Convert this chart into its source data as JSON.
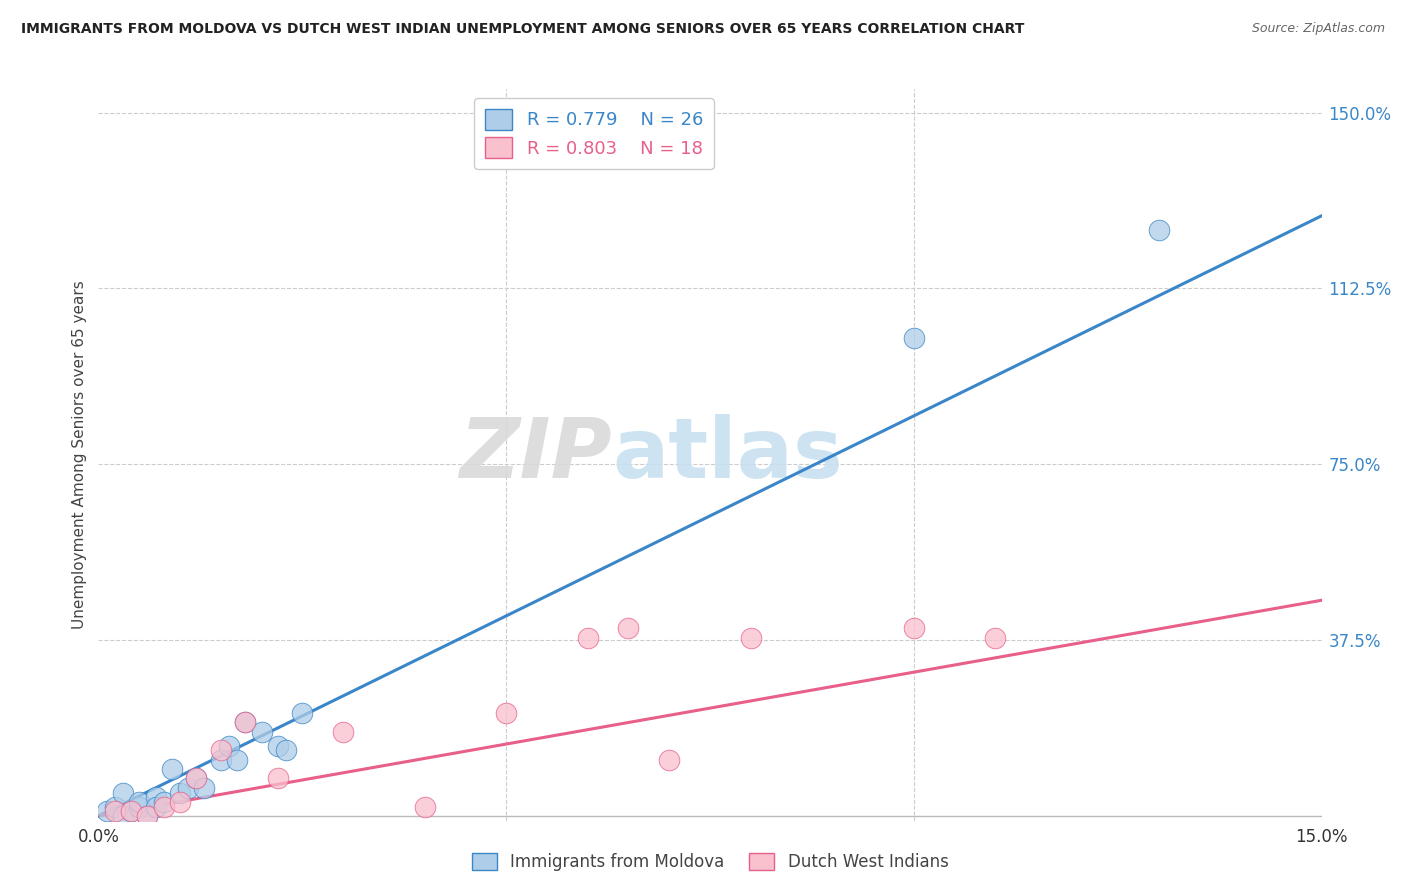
{
  "title": "IMMIGRANTS FROM MOLDOVA VS DUTCH WEST INDIAN UNEMPLOYMENT AMONG SENIORS OVER 65 YEARS CORRELATION CHART",
  "source": "Source: ZipAtlas.com",
  "ylabel": "Unemployment Among Seniors over 65 years",
  "xlim": [
    0,
    0.15
  ],
  "ylim": [
    -0.01,
    1.55
  ],
  "background_color": "#ffffff",
  "grid_color": "#cccccc",
  "watermark_zip": "ZIP",
  "watermark_atlas": "atlas",
  "legend_r1": "R = 0.779",
  "legend_n1": "N = 26",
  "legend_r2": "R = 0.803",
  "legend_n2": "N = 18",
  "blue_fill": "#aecde8",
  "pink_fill": "#f9c0ce",
  "blue_line_color": "#3a86c8",
  "pink_line_color": "#e8608a",
  "blue_scatter_x": [
    0.001,
    0.002,
    0.003,
    0.003,
    0.004,
    0.005,
    0.005,
    0.006,
    0.007,
    0.007,
    0.008,
    0.009,
    0.01,
    0.011,
    0.012,
    0.013,
    0.015,
    0.016,
    0.017,
    0.018,
    0.02,
    0.022,
    0.023,
    0.025,
    0.1,
    0.13
  ],
  "blue_scatter_y": [
    0.01,
    0.02,
    0.0,
    0.05,
    0.01,
    0.02,
    0.03,
    0.0,
    0.04,
    0.02,
    0.03,
    0.1,
    0.05,
    0.06,
    0.08,
    0.06,
    0.12,
    0.15,
    0.12,
    0.2,
    0.18,
    0.15,
    0.14,
    0.22,
    1.02,
    1.25
  ],
  "pink_scatter_x": [
    0.002,
    0.004,
    0.006,
    0.008,
    0.01,
    0.012,
    0.015,
    0.018,
    0.022,
    0.03,
    0.04,
    0.05,
    0.06,
    0.065,
    0.07,
    0.08,
    0.1,
    0.11
  ],
  "pink_scatter_y": [
    0.01,
    0.01,
    0.0,
    0.02,
    0.03,
    0.08,
    0.14,
    0.2,
    0.08,
    0.18,
    0.02,
    0.22,
    0.38,
    0.4,
    0.12,
    0.38,
    0.4,
    0.38
  ],
  "blue_line_x": [
    0.0,
    0.15
  ],
  "blue_line_y": [
    0.0,
    1.28
  ],
  "pink_line_x": [
    0.0,
    0.15
  ],
  "pink_line_y": [
    0.0,
    0.46
  ],
  "ytick_vals": [
    1.5,
    1.125,
    0.75,
    0.375
  ],
  "ytick_labels": [
    "150.0%",
    "112.5%",
    "75.0%",
    "37.5%"
  ],
  "xtick_vals": [
    0.0,
    0.15
  ],
  "xtick_labels": [
    "0.0%",
    "15.0%"
  ],
  "vgrid_vals": [
    0.05,
    0.1
  ]
}
